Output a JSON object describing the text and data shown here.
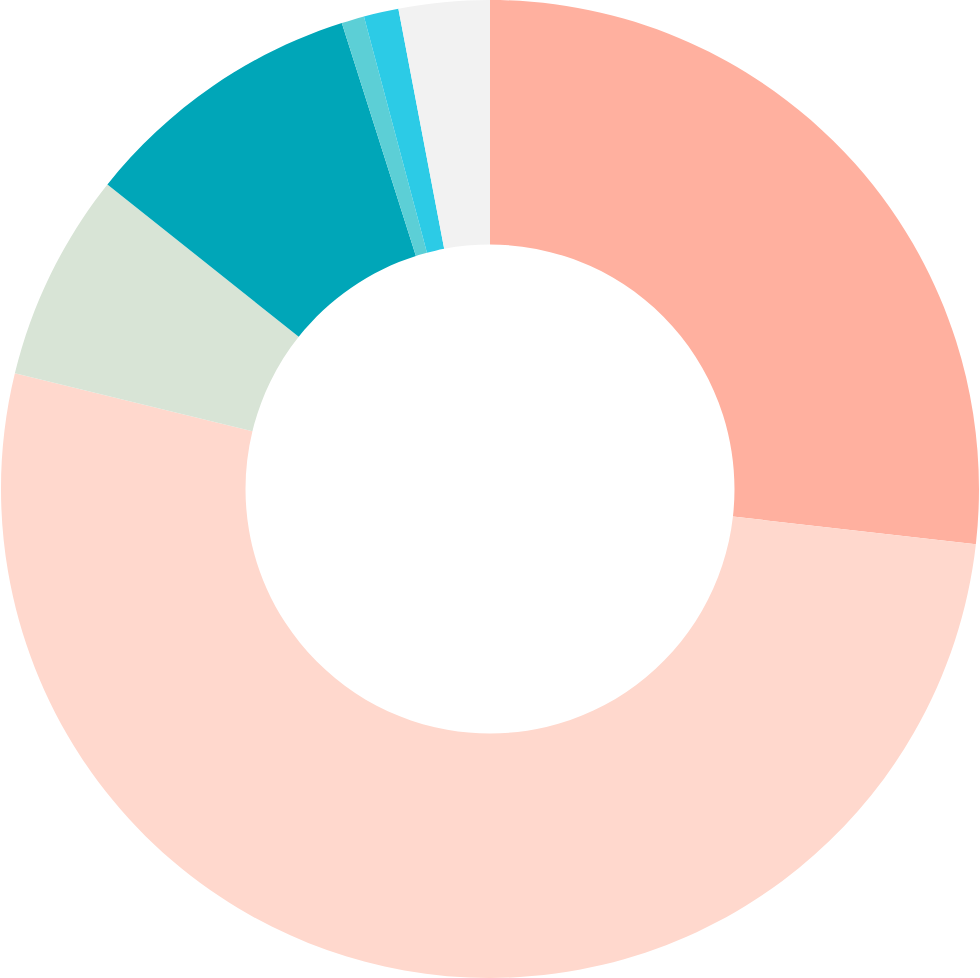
{
  "chart_data": {
    "type": "donut",
    "categories": [
      null,
      null,
      null,
      null,
      null,
      null,
      null
    ],
    "values": [
      26.8,
      52.0,
      6.9,
      9.4,
      0.75,
      1.15,
      3.0
    ],
    "colors": [
      "#ffb09f",
      "#ffd8cd",
      "#d8e4d6",
      "#00a6b8",
      "#5ccfd6",
      "#2ccbe6",
      "#f2f2f2"
    ]
  }
}
